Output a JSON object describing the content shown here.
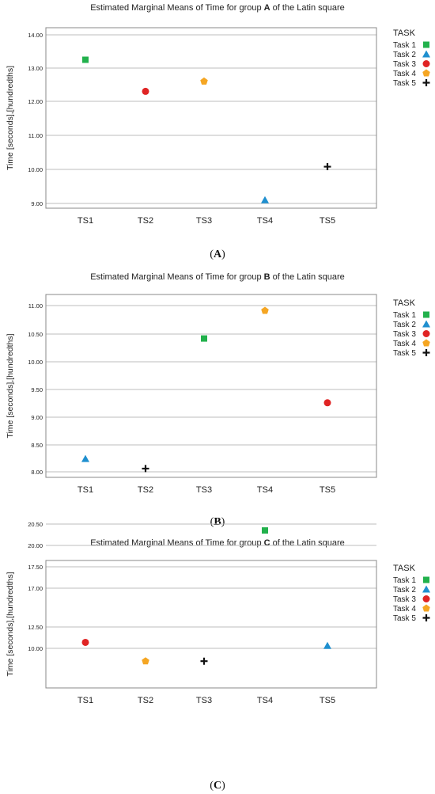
{
  "legend": {
    "title": "TASK",
    "entries": [
      {
        "label": "Task 1",
        "marker": "square",
        "color": "#22b14c"
      },
      {
        "label": "Task 2",
        "marker": "triangle",
        "color": "#1f8fcf"
      },
      {
        "label": "Task 3",
        "marker": "circle",
        "color": "#e02424"
      },
      {
        "label": "Task 4",
        "marker": "pentagon",
        "color": "#f5a623"
      },
      {
        "label": "Task 5",
        "marker": "plus",
        "color": "#111111"
      }
    ]
  },
  "chart_data": [
    {
      "type": "scatter",
      "title_prefix": "Estimated Marginal Means of Time for group ",
      "title_group": "A",
      "title_suffix": " of the Latin square",
      "ylabel": "Time [seconds],[hundredths]",
      "categories": [
        "TS1",
        "TS2",
        "TS3",
        "TS4",
        "TS5"
      ],
      "yticks": [
        "9.00",
        "10.00",
        "11.00",
        "12.00",
        "13.00",
        "14.00"
      ],
      "caption": "A",
      "points": [
        {
          "series": "Task 1",
          "x": "TS1",
          "y": 13.25
        },
        {
          "series": "Task 3",
          "x": "TS2",
          "y": 12.3
        },
        {
          "series": "Task 4",
          "x": "TS3",
          "y": 12.6
        },
        {
          "series": "Task 2",
          "x": "TS4",
          "y": 9.1
        },
        {
          "series": "Task 5",
          "x": "TS5",
          "y": 10.08
        }
      ]
    },
    {
      "type": "scatter",
      "title_prefix": "Estimated Marginal Means of Time for group ",
      "title_group": "B",
      "title_suffix": " of the Latin square",
      "ylabel": "Time [seconds],[hundredths]",
      "categories": [
        "TS1",
        "TS2",
        "TS3",
        "TS4",
        "TS5"
      ],
      "yticks": [
        "8.00",
        "8.50",
        "9.00",
        "9.50",
        "10.00",
        "10.50",
        "11.00"
      ],
      "caption": "B",
      "points": [
        {
          "series": "Task 2",
          "x": "TS1",
          "y": 8.24
        },
        {
          "series": "Task 5",
          "x": "TS2",
          "y": 8.06
        },
        {
          "series": "Task 1",
          "x": "TS3",
          "y": 10.42
        },
        {
          "series": "Task 4",
          "x": "TS4",
          "y": 10.91
        },
        {
          "series": "Task 3",
          "x": "TS5",
          "y": 9.26
        }
      ]
    },
    {
      "type": "scatter",
      "title_prefix": "Estimated Marginal Means of Time for group ",
      "title_group": "C",
      "title_suffix": " of the Latin square",
      "ylabel": "Time [seconds],[hundredths]",
      "categories": [
        "TS1",
        "TS2",
        "TS3",
        "TS4",
        "TS5"
      ],
      "yticks": [
        "10.00",
        "12.50",
        "17.00",
        "17.50",
        "20.00",
        "20.50"
      ],
      "caption": "C",
      "points": [
        {
          "series": "Task 3",
          "x": "TS1",
          "y": 10.7
        },
        {
          "series": "Task 4",
          "x": "TS2",
          "y": 8.5
        },
        {
          "series": "Task 5",
          "x": "TS3",
          "y": 8.5
        },
        {
          "series": "Task 1",
          "x": "TS4",
          "y": 20.35
        },
        {
          "series": "Task 2",
          "x": "TS5",
          "y": 10.3
        }
      ]
    }
  ]
}
